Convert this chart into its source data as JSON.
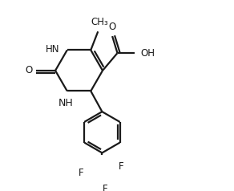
{
  "bg_color": "#ffffff",
  "line_color": "#1a1a1a",
  "line_width": 1.6,
  "font_size": 8.5,
  "figsize": [
    2.92,
    2.38
  ],
  "dpi": 100,
  "xlim": [
    0,
    9.5
  ],
  "ylim": [
    0,
    7.5
  ]
}
